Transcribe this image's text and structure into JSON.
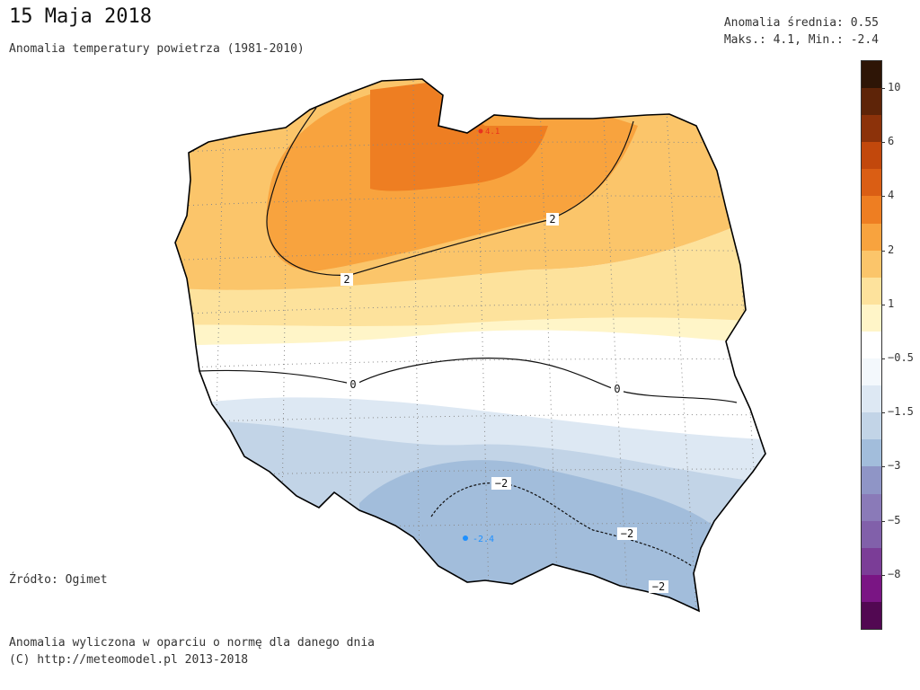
{
  "header": {
    "title": "15 Maja 2018",
    "subtitle": "Anomalia temperatury powietrza (1981-2010)",
    "mean": "Anomalia średnia: 0.55",
    "maxmin": "Maks.: 4.1, Min.: -2.4"
  },
  "footer": {
    "source": "Źródło: Ogimet",
    "note": "Anomalia wyliczona w oparciu o normę dla danego dnia",
    "copyright": "(C) http://meteomodel.pl 2013-2018"
  },
  "map": {
    "region": "Polska",
    "max_marker": {
      "label": "4.1",
      "color": "#e8321e"
    },
    "min_marker": {
      "label": "-2.4",
      "color": "#1e90ff"
    },
    "contour_labels": [
      "2",
      "2",
      "0",
      "0",
      "−2",
      "−2",
      "−2"
    ]
  },
  "colorbar": {
    "segments": [
      "#2e1506",
      "#5e2408",
      "#8c320a",
      "#c2480c",
      "#da5e14",
      "#ee7e22",
      "#f8a33e",
      "#fbc56a",
      "#fde29c",
      "#fff5c8",
      "#ffffff",
      "#f3f8fc",
      "#dde8f3",
      "#c2d4e7",
      "#a2bddb",
      "#8f95c6",
      "#8a7ab8",
      "#8160aa",
      "#7b3d97",
      "#7a1584",
      "#520852"
    ],
    "labels": [
      "10",
      "6",
      "4",
      "2",
      "1",
      "−0.5",
      "−1.5",
      "−3",
      "−5",
      "−8"
    ]
  }
}
